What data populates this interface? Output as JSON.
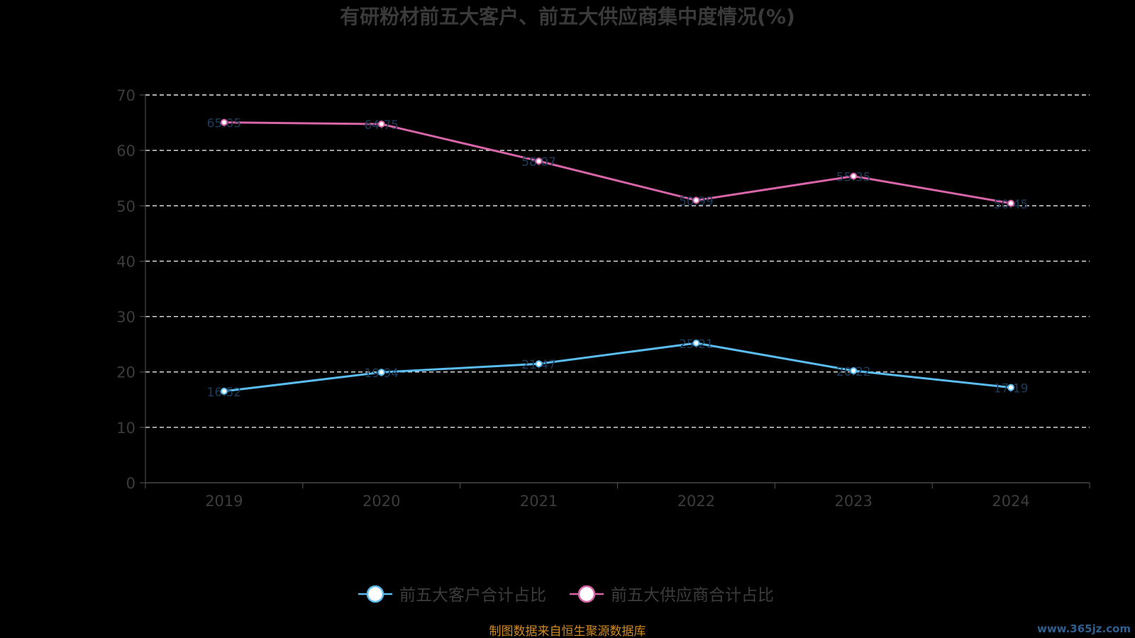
{
  "chart_data": {
    "type": "line",
    "title": "有研粉材前五大客户、前五大供应商集中度情况(%)",
    "categories": [
      "2019",
      "2020",
      "2021",
      "2022",
      "2023",
      "2024"
    ],
    "series": [
      {
        "name": "前五大客户合计占比",
        "color": "#5bbcf0",
        "values": [
          16.52,
          19.94,
          21.47,
          25.21,
          20.22,
          17.19
        ],
        "labels": [
          "16.52",
          "19.94",
          "21.47",
          "25.21",
          "20.22",
          "17.19"
        ]
      },
      {
        "name": "前五大供应商合计占比",
        "color": "#d865a8",
        "values": [
          65.05,
          64.75,
          58.07,
          50.99,
          55.35,
          50.45
        ],
        "labels": [
          "65.05",
          "64.75",
          "58.07",
          "50.99",
          "55.35",
          "50.45"
        ]
      }
    ],
    "y_ticks": [
      "0",
      "10",
      "20",
      "30",
      "40",
      "50",
      "60",
      "70"
    ],
    "ylim": [
      0,
      70
    ],
    "grid": true,
    "legend_position": "bottom-center"
  },
  "footer": {
    "source_text": "制图数据来自恒生聚源数据库",
    "watermark": "www.365jz.com"
  }
}
